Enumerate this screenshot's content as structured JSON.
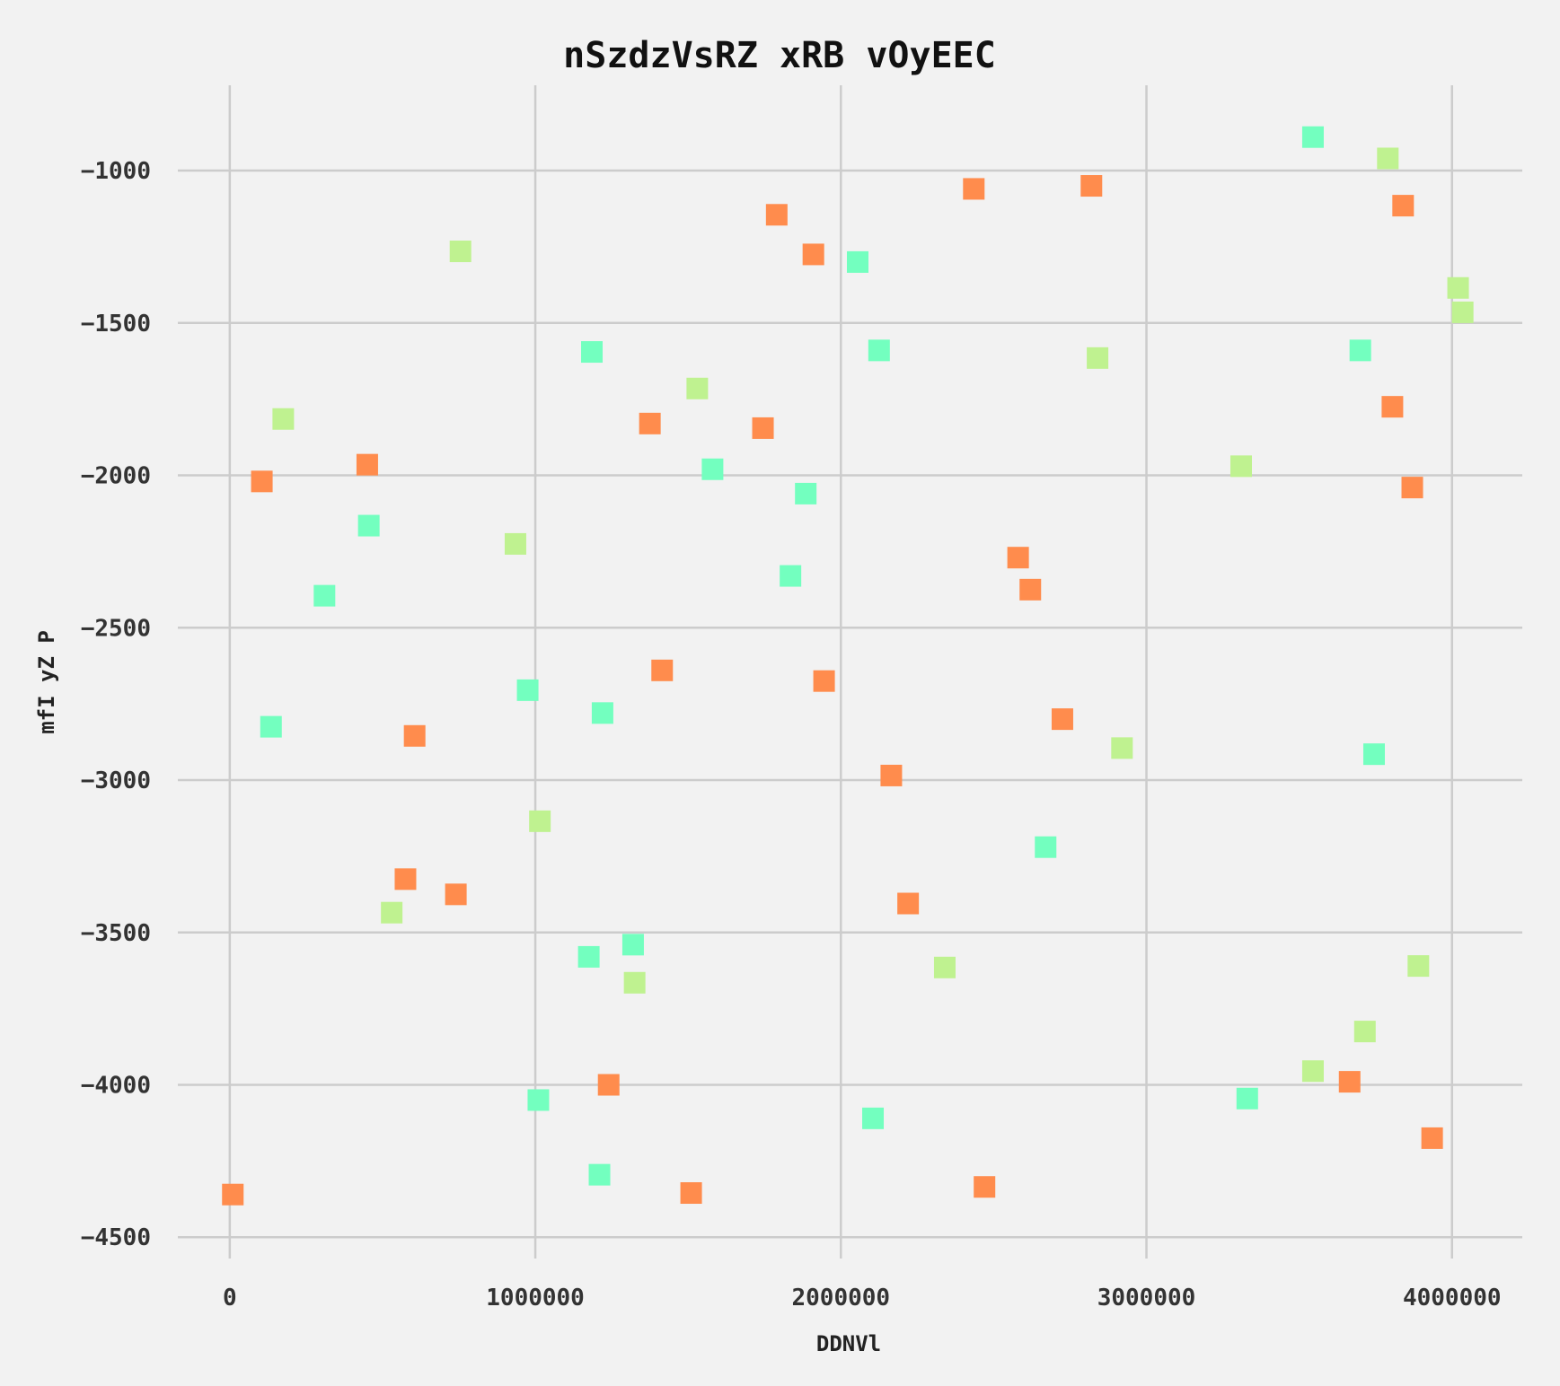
{
  "chart_data": {
    "type": "scatter",
    "title": "nSzdzVsRZ xRB vOyEEC",
    "xlabel": "DDNVl",
    "ylabel": "mfI yZ P",
    "xlim": [
      -170000,
      4230000
    ],
    "ylim": [
      -4570000,
      -720000
    ],
    "ylim_note": "",
    "x_ticks": [
      0,
      1000000,
      2000000,
      3000000,
      4000000
    ],
    "x_tick_labels": [
      "0",
      "1000000",
      "2000000",
      "3000000",
      "4000000"
    ],
    "y_ticks": [
      -1000,
      -1500,
      -2000,
      -2500,
      -3000,
      -3500,
      -4000,
      -4500
    ],
    "y_tick_labels": [
      "−1000",
      "−1500",
      "−2000",
      "−2500",
      "−3000",
      "−3500",
      "−4000",
      "−4500"
    ],
    "grid": true,
    "marker": "square",
    "series": [
      {
        "color": "#ff8c4d",
        "points": [
          [
            10000,
            -4360
          ],
          [
            105000,
            -2020
          ],
          [
            450000,
            -1965
          ],
          [
            575000,
            -3325
          ],
          [
            605000,
            -2855
          ],
          [
            740000,
            -3375
          ],
          [
            1240000,
            -4000
          ],
          [
            1375000,
            -1830
          ],
          [
            1415000,
            -2640
          ],
          [
            1510000,
            -4355
          ],
          [
            1745000,
            -1845
          ],
          [
            1790000,
            -1145
          ],
          [
            1910000,
            -1275
          ],
          [
            1945000,
            -2675
          ],
          [
            2165000,
            -2985
          ],
          [
            2220000,
            -3405
          ],
          [
            2435000,
            -1060
          ],
          [
            2470000,
            -4335
          ],
          [
            2580000,
            -2270
          ],
          [
            2620000,
            -2375
          ],
          [
            2725000,
            -2800
          ],
          [
            2820000,
            -1050
          ],
          [
            3665000,
            -3990
          ],
          [
            3805000,
            -1775
          ],
          [
            3840000,
            -1115
          ],
          [
            3870000,
            -2040
          ],
          [
            3935000,
            -4175
          ]
        ]
      },
      {
        "color": "#73ffbf",
        "points": [
          [
            135000,
            -2825
          ],
          [
            310000,
            -2395
          ],
          [
            455000,
            -2165
          ],
          [
            975000,
            -2705
          ],
          [
            1010000,
            -4050
          ],
          [
            1175000,
            -3580
          ],
          [
            1185000,
            -1595
          ],
          [
            1210000,
            -4295
          ],
          [
            1220000,
            -2780
          ],
          [
            1320000,
            -3540
          ],
          [
            1580000,
            -1980
          ],
          [
            1835000,
            -2330
          ],
          [
            1885000,
            -2060
          ],
          [
            2055000,
            -1300
          ],
          [
            2105000,
            -4110
          ],
          [
            2125000,
            -1590
          ],
          [
            2670000,
            -3220
          ],
          [
            3330000,
            -4045
          ],
          [
            3545000,
            -890
          ],
          [
            3700000,
            -1590
          ],
          [
            3745000,
            -2915
          ]
        ]
      },
      {
        "color": "#bff290",
        "points": [
          [
            175000,
            -1815
          ],
          [
            530000,
            -3435
          ],
          [
            755000,
            -1265
          ],
          [
            935000,
            -2225
          ],
          [
            1015000,
            -3135
          ],
          [
            1325000,
            -3665
          ],
          [
            1530000,
            -1715
          ],
          [
            2340000,
            -3615
          ],
          [
            2840000,
            -1615
          ],
          [
            2920000,
            -2895
          ],
          [
            3310000,
            -1970
          ],
          [
            3545000,
            -3955
          ],
          [
            3790000,
            -960
          ],
          [
            3715000,
            -3825
          ],
          [
            3890000,
            -3610
          ],
          [
            4020000,
            -1385
          ],
          [
            4035000,
            -1465
          ]
        ]
      }
    ]
  }
}
